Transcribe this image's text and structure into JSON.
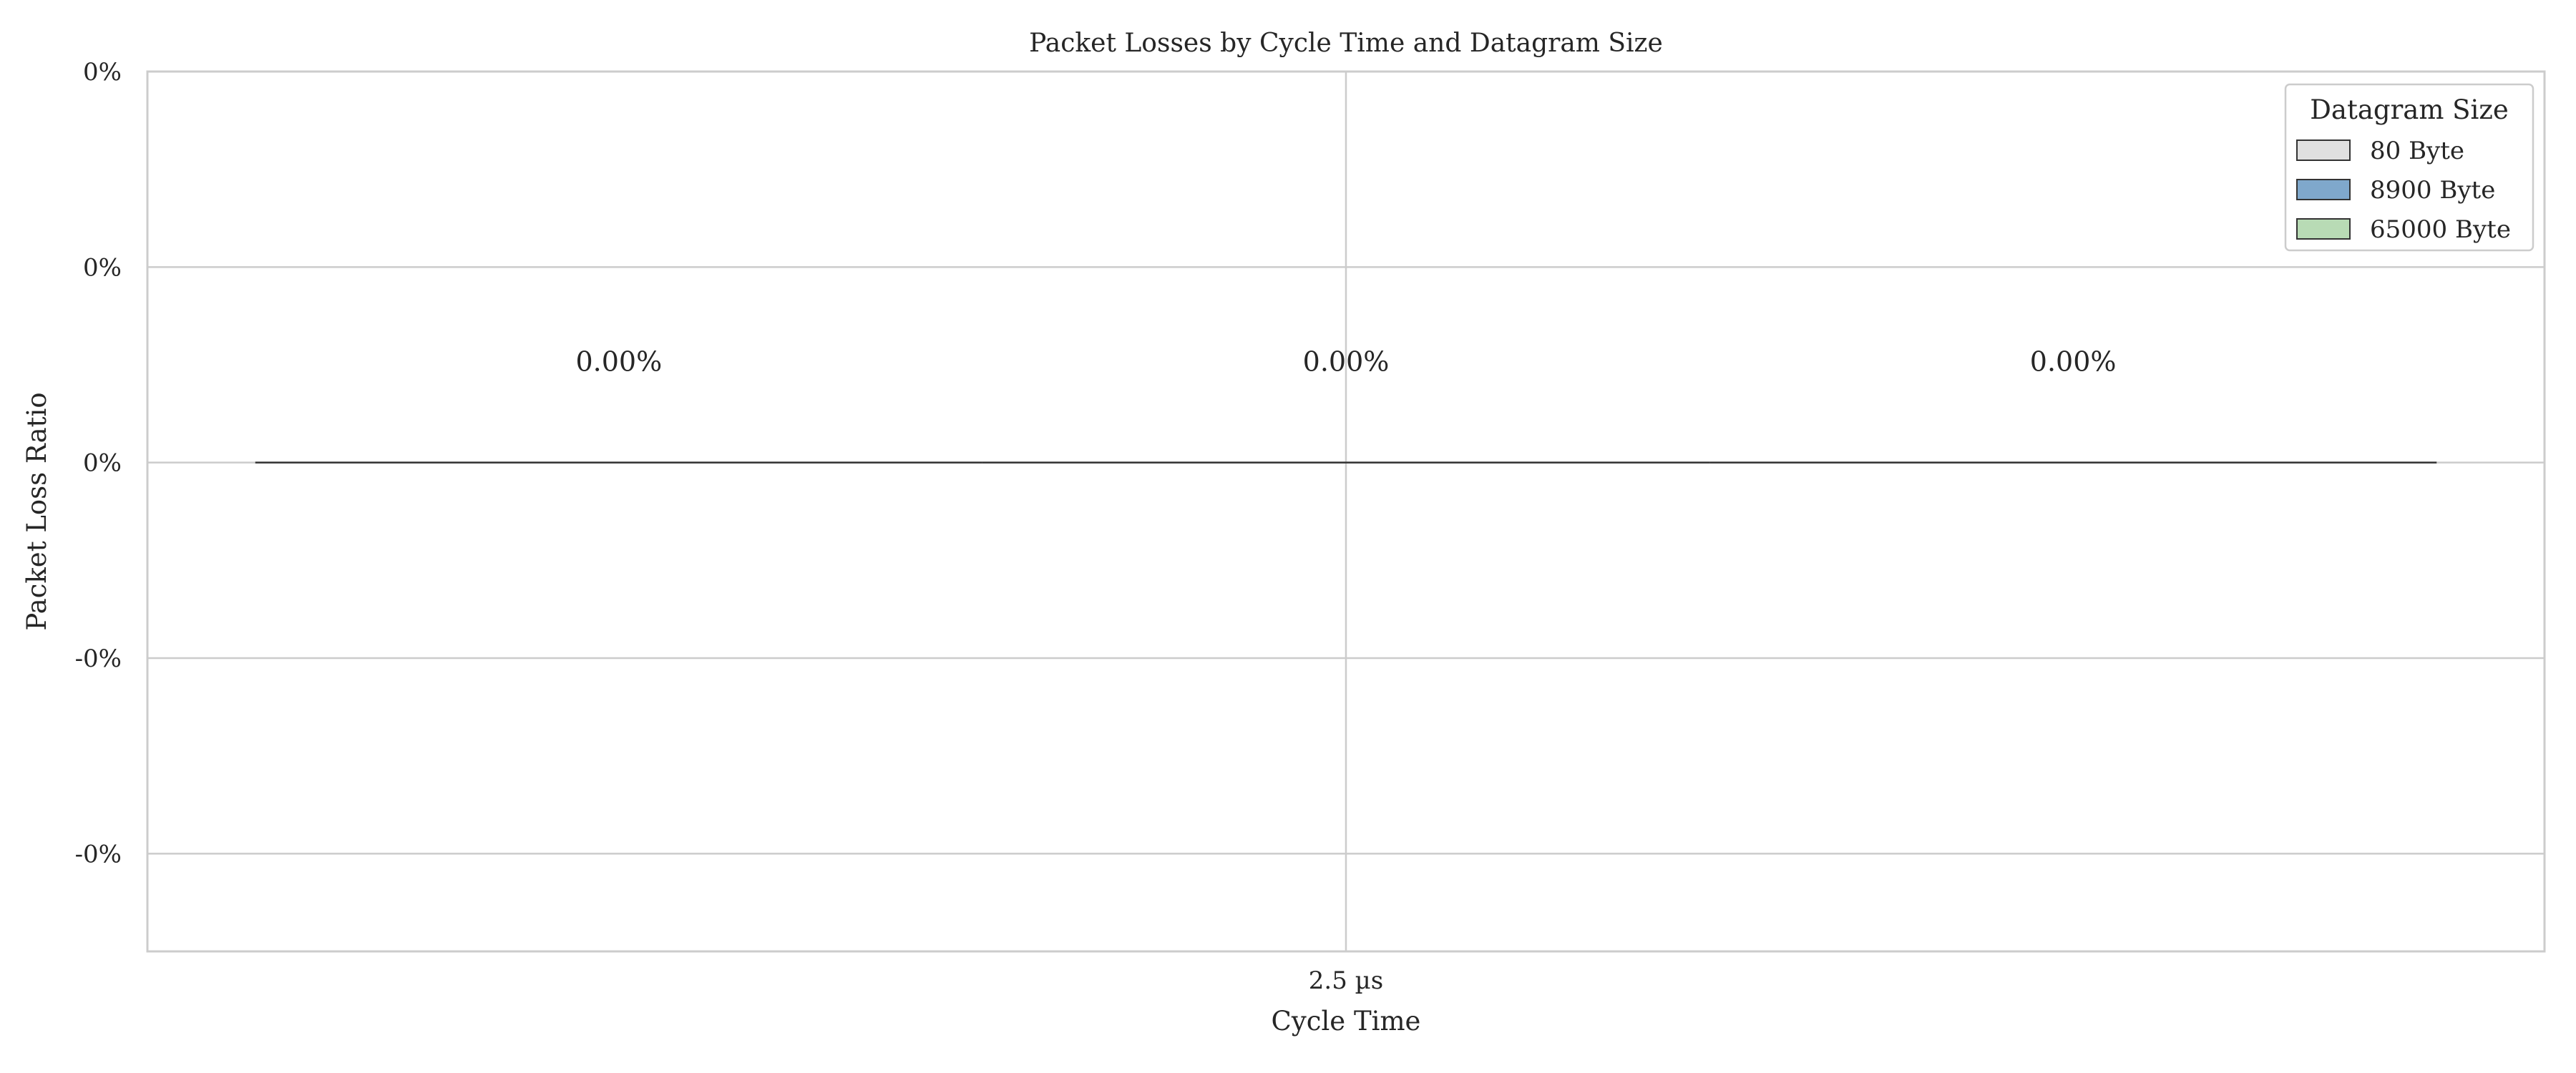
{
  "chart_data": {
    "type": "bar",
    "title": "Packet Losses by Cycle Time and Datagram Size",
    "xlabel": "Cycle Time",
    "ylabel": "Packet Loss Ratio",
    "categories": [
      "2.5 µs"
    ],
    "series": [
      {
        "name": "80 Byte",
        "values": [
          0.0
        ],
        "label": "0.00%",
        "color": "#e0e0e0"
      },
      {
        "name": "8900 Byte",
        "values": [
          0.0
        ],
        "label": "0.00%",
        "color": "#7fa8cc"
      },
      {
        "name": "65000 Byte",
        "values": [
          0.0
        ],
        "label": "0.00%",
        "color": "#b8dbb5"
      }
    ],
    "ylim": [
      -0.00025,
      0.0002
    ],
    "yticks": [
      -0.0002,
      -0.0001,
      0.0,
      0.0001,
      0.0002
    ],
    "ytick_labels": [
      "-0%",
      "-0%",
      "0%",
      "0%",
      "0%"
    ],
    "grid": true,
    "legend": {
      "title": "Datagram Size",
      "placement": "top-right"
    }
  }
}
